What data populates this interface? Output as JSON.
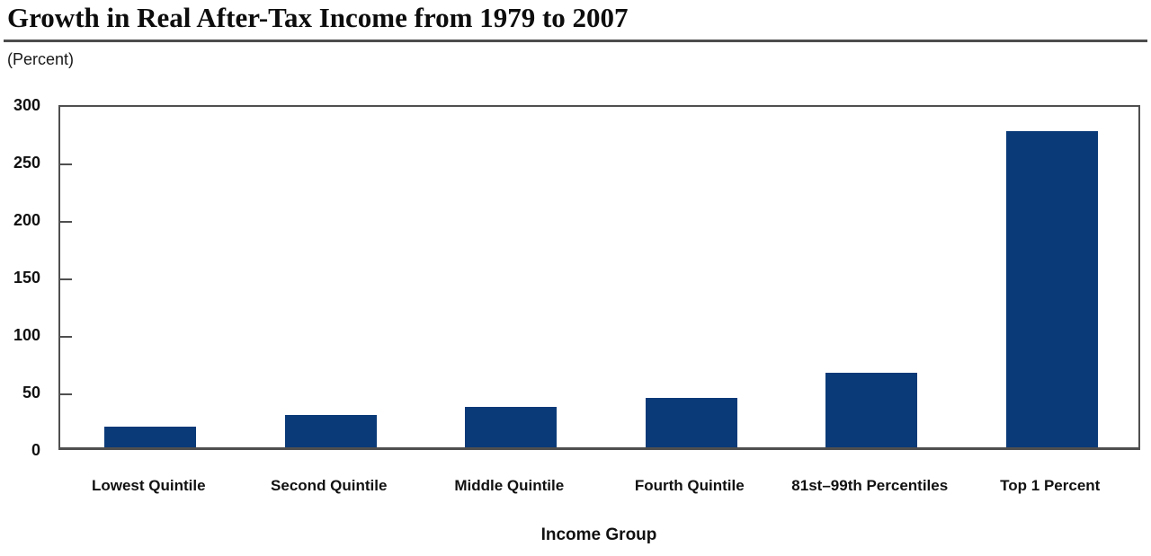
{
  "chart_data": {
    "type": "bar",
    "title": "Growth in Real After-Tax Income from 1979 to 2007",
    "xlabel": "Income Group",
    "ylabel": "(Percent)",
    "categories": [
      "Lowest Quintile",
      "Second Quintile",
      "Middle Quintile",
      "Fourth Quintile",
      "81st–99th Percentiles",
      "Top 1 Percent"
    ],
    "values": [
      18,
      28,
      35,
      43,
      65,
      275
    ],
    "ylim": [
      0,
      300
    ],
    "ytick_step": 50,
    "yticks": [
      0,
      50,
      100,
      150,
      200,
      250,
      300
    ],
    "grid": false,
    "legend": "none",
    "bar_color": "#0a3a78",
    "axis_color": "#4f4f4f",
    "title_rule_color": "#4d4d4d"
  }
}
